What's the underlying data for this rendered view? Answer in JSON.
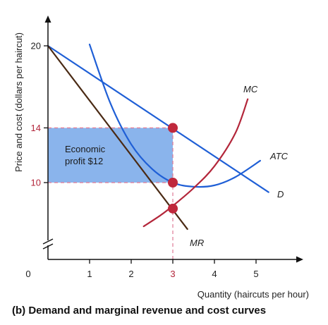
{
  "chart_data": {
    "type": "line",
    "caption": "(b) Demand and marginal revenue and cost curves",
    "xlabel": "Quantity (haircuts per hour)",
    "ylabel": "Price and cost (dollars per haircut)",
    "xlim": [
      0,
      6
    ],
    "ylim": [
      4.5,
      21.5
    ],
    "axis_break": true,
    "x_ticks": [
      "0",
      "1",
      "2",
      "3",
      "4",
      "5"
    ],
    "y_ticks": [
      {
        "value": 20,
        "label": "20",
        "highlight": false
      },
      {
        "value": 14,
        "label": "14",
        "highlight": true
      },
      {
        "value": 10,
        "label": "10",
        "highlight": true
      }
    ],
    "x_highlight": {
      "value": 3,
      "label": "3"
    },
    "grid": false,
    "series": [
      {
        "name": "D",
        "color": "#1f5fd6",
        "points": [
          [
            0,
            20
          ],
          [
            2,
            17
          ],
          [
            4,
            11.5
          ],
          [
            5.3,
            9.3
          ]
        ]
      },
      {
        "name": "MR",
        "color": "#4a2a14",
        "points": [
          [
            0,
            20
          ],
          [
            1,
            16
          ],
          [
            2,
            12
          ],
          [
            3,
            8
          ],
          [
            3.35,
            6.6
          ]
        ]
      },
      {
        "name": "ATC",
        "color": "#1f5fd6",
        "points": [
          [
            1,
            20.1
          ],
          [
            1.5,
            15.8
          ],
          [
            2,
            12.8
          ],
          [
            2.5,
            11
          ],
          [
            3,
            10
          ],
          [
            3.5,
            9.7
          ],
          [
            4,
            9.8
          ],
          [
            4.5,
            10.4
          ],
          [
            5.1,
            11.6
          ]
        ]
      },
      {
        "name": "MC",
        "color": "#b3263a",
        "points": [
          [
            2.3,
            6.8
          ],
          [
            2.7,
            7.6
          ],
          [
            3,
            8.3
          ],
          [
            3.5,
            9.6
          ],
          [
            4,
            11.2
          ],
          [
            4.5,
            13.6
          ],
          [
            4.8,
            16.1
          ]
        ]
      }
    ],
    "points": [
      {
        "x": 3,
        "y": 14,
        "color": "#c0283c"
      },
      {
        "x": 3,
        "y": 10,
        "color": "#c0283c"
      },
      {
        "x": 3,
        "y": 8.1,
        "color": "#c0283c"
      }
    ],
    "profit_area": {
      "x": [
        0,
        3
      ],
      "y": [
        10,
        14
      ],
      "color": "#8ab4ec",
      "label": [
        "Economic",
        "profit $12"
      ]
    },
    "guide_lines": [
      {
        "from": [
          0,
          14
        ],
        "to": [
          3,
          14
        ]
      },
      {
        "from": [
          0,
          10
        ],
        "to": [
          3,
          10
        ]
      },
      {
        "from": [
          3,
          4.5
        ],
        "to": [
          3,
          14
        ]
      }
    ]
  }
}
